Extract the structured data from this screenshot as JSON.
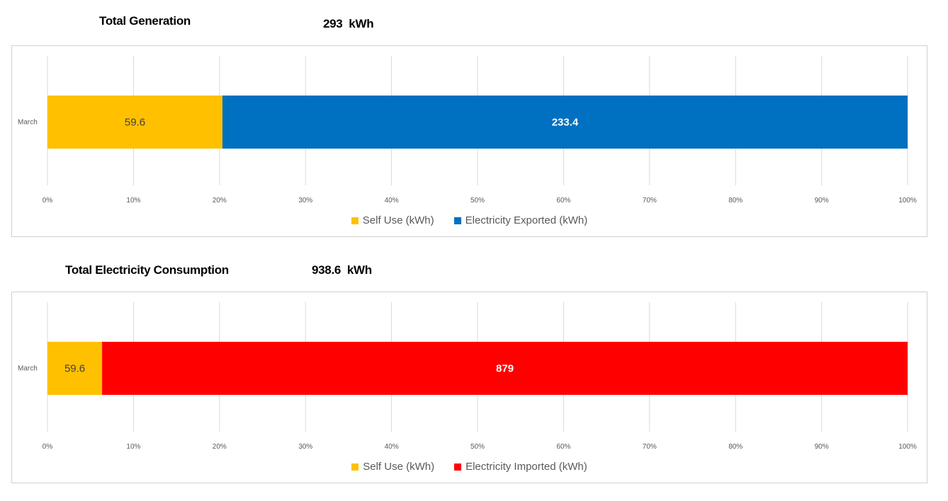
{
  "charts": [
    {
      "heading": "Total Generation",
      "total": "293  kWh"
    },
    {
      "heading": "Total Electricity Consumption",
      "total": "938.6  kWh"
    }
  ],
  "chart_data": [
    {
      "type": "bar",
      "orientation": "horizontal",
      "stacking": "percent",
      "categories": [
        "March"
      ],
      "series": [
        {
          "name": "Self Use (kWh)",
          "values": [
            59.6
          ],
          "color": "#FFC000",
          "label_color": "#404040"
        },
        {
          "name": "Electricity Exported (kWh)",
          "values": [
            233.4
          ],
          "color": "#0070C0",
          "label_color": "#FFFFFF"
        }
      ],
      "x_ticks": [
        "0%",
        "10%",
        "20%",
        "30%",
        "40%",
        "50%",
        "60%",
        "70%",
        "80%",
        "90%",
        "100%"
      ],
      "xlim": [
        0,
        100
      ],
      "grid": true,
      "legend_position": "bottom"
    },
    {
      "type": "bar",
      "orientation": "horizontal",
      "stacking": "percent",
      "categories": [
        "March"
      ],
      "series": [
        {
          "name": "Self Use (kWh)",
          "values": [
            59.6
          ],
          "color": "#FFC000",
          "label_color": "#404040"
        },
        {
          "name": "Electricity Imported (kWh)",
          "values": [
            879
          ],
          "color": "#FF0000",
          "label_color": "#FFFFFF"
        }
      ],
      "x_ticks": [
        "0%",
        "10%",
        "20%",
        "30%",
        "40%",
        "50%",
        "60%",
        "70%",
        "80%",
        "90%",
        "100%"
      ],
      "xlim": [
        0,
        100
      ],
      "grid": true,
      "legend_position": "bottom"
    }
  ]
}
